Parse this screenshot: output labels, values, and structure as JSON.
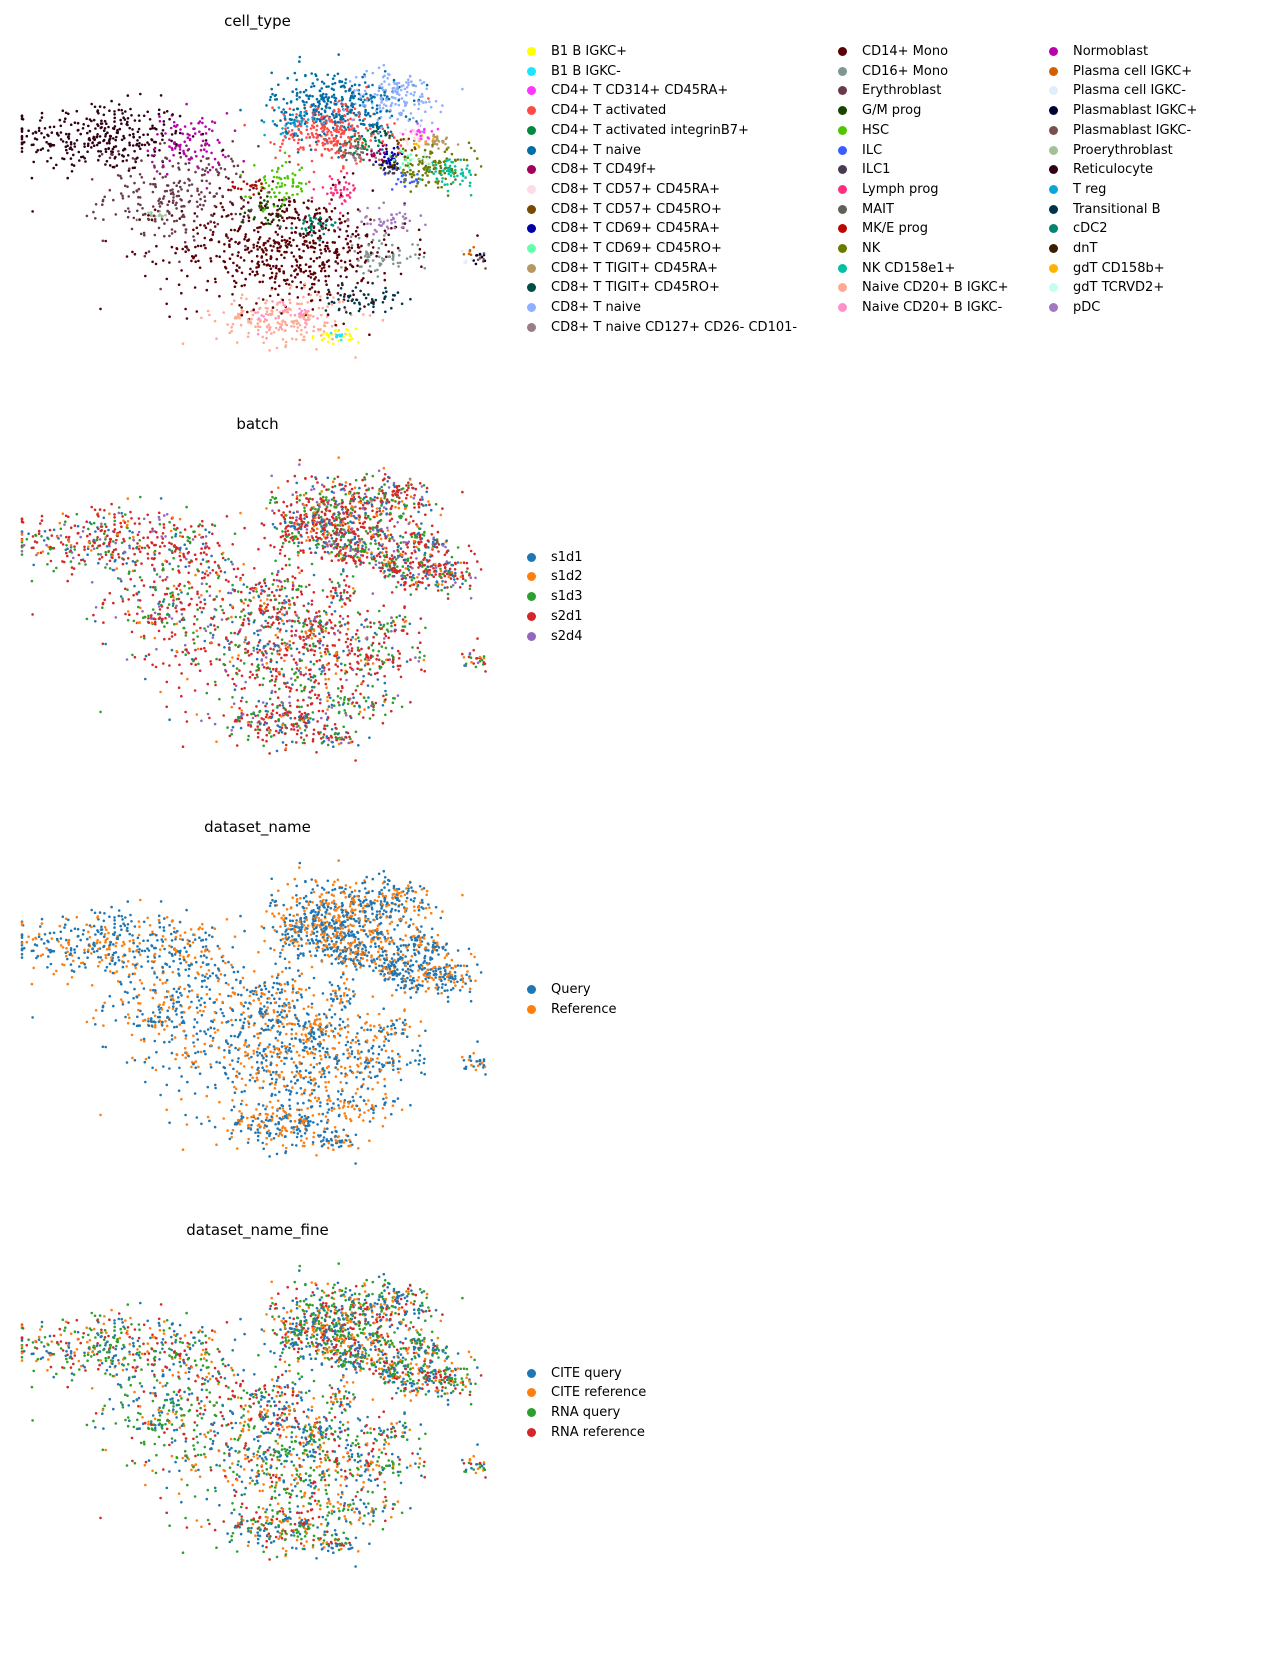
{
  "chart_data": {
    "type": "scatter",
    "xlabel": "",
    "ylabel": "",
    "axes": "off",
    "grid": false,
    "umap_range": {
      "x": [
        0,
        19
      ],
      "y": [
        -1.5,
        12
      ]
    },
    "clusters": [
      [
        "Reticulocyte",
        3.1,
        8.0,
        1.8,
        0.8,
        320
      ],
      [
        "Normoblast",
        6.7,
        7.7,
        0.8,
        0.7,
        90
      ],
      [
        "Erythroblast",
        6.3,
        5.4,
        1.5,
        1.1,
        260
      ],
      [
        "Proerythroblast",
        5.2,
        4.4,
        0.3,
        0.15,
        15
      ],
      [
        "CD14+ Mono",
        10.8,
        3.0,
        2.4,
        1.3,
        620
      ],
      [
        "CD16+ Mono",
        14.5,
        2.6,
        0.8,
        0.4,
        60
      ],
      [
        "Naive CD20+ B IGKC+",
        10.6,
        -0.2,
        1.4,
        0.6,
        200
      ],
      [
        "Naive CD20+ B IGKC-",
        10.8,
        0.0,
        0.8,
        0.4,
        40
      ],
      [
        "B1 B IGKC+",
        12.7,
        -1.0,
        0.5,
        0.2,
        30
      ],
      [
        "B1 B IGKC-",
        12.8,
        -0.9,
        0.2,
        0.1,
        10
      ],
      [
        "Transitional B",
        13.7,
        0.7,
        0.8,
        0.3,
        60
      ],
      [
        "CD4+ T naive",
        12.7,
        9.4,
        1.3,
        0.8,
        350
      ],
      [
        "CD8+ T naive",
        15.1,
        9.8,
        1.0,
        0.6,
        150
      ],
      [
        "CD4+ T activated",
        12.5,
        8.2,
        1.1,
        0.7,
        250
      ],
      [
        "T reg",
        11.0,
        8.6,
        0.4,
        0.3,
        40
      ],
      [
        "CD4+ T activated integrinB7+",
        13.8,
        7.7,
        0.4,
        0.3,
        30
      ],
      [
        "CD8+ T CD49f+",
        14.4,
        7.3,
        0.3,
        0.2,
        15
      ],
      [
        "CD4+ T CD314+ CD45RA+",
        16.2,
        8.2,
        0.3,
        0.2,
        20
      ],
      [
        "CD8+ T CD57+ CD45RA+",
        15.8,
        8.0,
        0.3,
        0.25,
        20
      ],
      [
        "CD8+ T CD57+ CD45RO+",
        15.4,
        7.6,
        0.25,
        0.2,
        15
      ],
      [
        "CD8+ T CD69+ CD45RA+",
        15.0,
        7.1,
        0.3,
        0.25,
        30
      ],
      [
        "CD8+ T CD69+ CD45RO+",
        15.6,
        7.0,
        0.25,
        0.2,
        15
      ],
      [
        "CD8+ T TIGIT+ CD45RA+",
        16.8,
        7.8,
        0.4,
        0.25,
        25
      ],
      [
        "CD8+ T TIGIT+ CD45RO+",
        14.4,
        8.2,
        0.3,
        0.25,
        20
      ],
      [
        "CD8+ T naive CD127+ CD26- CD101-",
        13.6,
        7.2,
        0.3,
        0.2,
        15
      ],
      [
        "gdT CD158b+",
        16.2,
        7.8,
        0.2,
        0.2,
        10
      ],
      [
        "gdT TCRVD2+",
        16.4,
        7.0,
        0.25,
        0.2,
        10
      ],
      [
        "dnT",
        14.9,
        6.8,
        0.25,
        0.15,
        10
      ],
      [
        "NK",
        16.5,
        6.6,
        0.9,
        0.4,
        120
      ],
      [
        "NK CD158e1+",
        17.4,
        6.4,
        0.5,
        0.3,
        60
      ],
      [
        "ILC",
        15.6,
        6.0,
        0.3,
        0.2,
        20
      ],
      [
        "ILC1",
        14.8,
        6.6,
        0.25,
        0.2,
        15
      ],
      [
        "MAIT",
        13.2,
        7.3,
        0.4,
        0.2,
        25
      ],
      [
        "HSC",
        10.4,
        5.8,
        0.6,
        0.5,
        70
      ],
      [
        "MK/E prog",
        9.2,
        5.8,
        0.4,
        0.15,
        20
      ],
      [
        "G/M prog",
        10.0,
        4.6,
        0.6,
        0.3,
        40
      ],
      [
        "Lymph prog",
        12.8,
        5.6,
        0.4,
        0.3,
        40
      ],
      [
        "cDC2",
        11.8,
        4.0,
        0.6,
        0.25,
        40
      ],
      [
        "pDC",
        14.8,
        4.2,
        0.6,
        0.3,
        50
      ],
      [
        "Plasma cell IGKC+",
        18.2,
        2.8,
        0.12,
        0.12,
        6
      ],
      [
        "Plasma cell IGKC-",
        18.0,
        2.5,
        0.15,
        0.12,
        5
      ],
      [
        "Plasmablast IGKC+",
        18.5,
        2.6,
        0.15,
        0.15,
        8
      ],
      [
        "Plasmablast IGKC-",
        18.7,
        2.5,
        0.15,
        0.15,
        8
      ]
    ],
    "panels": [
      {
        "title": "cell_type",
        "color_by": "cluster",
        "legend_columns": 3,
        "legend": [
          {
            "label": "B1 B IGKC+",
            "color": "#ffff00"
          },
          {
            "label": "B1 B IGKC-",
            "color": "#1ce6ff"
          },
          {
            "label": "CD4+ T CD314+ CD45RA+",
            "color": "#ff34ff"
          },
          {
            "label": "CD4+ T activated",
            "color": "#ff4a46"
          },
          {
            "label": "CD4+ T activated integrinB7+",
            "color": "#008941"
          },
          {
            "label": "CD4+ T naive",
            "color": "#006fa6"
          },
          {
            "label": "CD8+ T CD49f+",
            "color": "#a30059"
          },
          {
            "label": "CD8+ T CD57+ CD45RA+",
            "color": "#ffdbe5"
          },
          {
            "label": "CD8+ T CD57+ CD45RO+",
            "color": "#7a4900"
          },
          {
            "label": "CD8+ T CD69+ CD45RA+",
            "color": "#0000a6"
          },
          {
            "label": "CD8+ T CD69+ CD45RO+",
            "color": "#63ffac"
          },
          {
            "label": "CD8+ T TIGIT+ CD45RA+",
            "color": "#b79762"
          },
          {
            "label": "CD8+ T TIGIT+ CD45RO+",
            "color": "#004d43"
          },
          {
            "label": "CD8+ T naive",
            "color": "#8fb0ff"
          },
          {
            "label": "CD8+ T naive CD127+ CD26- CD101-",
            "color": "#997d87"
          },
          {
            "label": "CD14+ Mono",
            "color": "#5a0007"
          },
          {
            "label": "CD16+ Mono",
            "color": "#809693"
          },
          {
            "label": "Erythroblast",
            "color": "#6a3a4c"
          },
          {
            "label": "G/M prog",
            "color": "#1b4400"
          },
          {
            "label": "HSC",
            "color": "#4fc601"
          },
          {
            "label": "ILC",
            "color": "#3b5dff"
          },
          {
            "label": "ILC1",
            "color": "#4a3b53"
          },
          {
            "label": "Lymph prog",
            "color": "#ff2f80"
          },
          {
            "label": "MAIT",
            "color": "#61615a"
          },
          {
            "label": "MK/E prog",
            "color": "#ba0900"
          },
          {
            "label": "NK",
            "color": "#6b7900"
          },
          {
            "label": "NK CD158e1+",
            "color": "#00c2a0"
          },
          {
            "label": "Naive CD20+ B IGKC+",
            "color": "#ffaa92"
          },
          {
            "label": "Naive CD20+ B IGKC-",
            "color": "#ff90c9"
          },
          {
            "label": "Normoblast",
            "color": "#b903aa"
          },
          {
            "label": "Plasma cell IGKC+",
            "color": "#d16100"
          },
          {
            "label": "Plasma cell IGKC-",
            "color": "#ddefff"
          },
          {
            "label": "Plasmablast IGKC+",
            "color": "#000035"
          },
          {
            "label": "Plasmablast IGKC-",
            "color": "#7b4f4b"
          },
          {
            "label": "Proerythroblast",
            "color": "#a1c299"
          },
          {
            "label": "Reticulocyte",
            "color": "#300018"
          },
          {
            "label": "T reg",
            "color": "#0aa6d8"
          },
          {
            "label": "Transitional B",
            "color": "#013349"
          },
          {
            "label": "cDC2",
            "color": "#00846f"
          },
          {
            "label": "dnT",
            "color": "#372101"
          },
          {
            "label": "gdT CD158b+",
            "color": "#ffb500"
          },
          {
            "label": "gdT TCRVD2+",
            "color": "#c2ffed"
          },
          {
            "label": "pDC",
            "color": "#a079bf"
          }
        ]
      },
      {
        "title": "batch",
        "color_by": "random",
        "weights": [
          0.15,
          0.1,
          0.2,
          0.45,
          0.1
        ],
        "legend": [
          {
            "label": "s1d1",
            "color": "#1f77b4"
          },
          {
            "label": "s1d2",
            "color": "#ff7f0e"
          },
          {
            "label": "s1d3",
            "color": "#2ca02c"
          },
          {
            "label": "s2d1",
            "color": "#d62728"
          },
          {
            "label": "s2d4",
            "color": "#9467bd"
          }
        ]
      },
      {
        "title": "dataset_name",
        "color_by": "random",
        "weights": [
          0.6,
          0.4
        ],
        "legend": [
          {
            "label": "Query",
            "color": "#1f77b4"
          },
          {
            "label": "Reference",
            "color": "#ff7f0e"
          }
        ]
      },
      {
        "title": "dataset_name_fine",
        "color_by": "random",
        "weights": [
          0.3,
          0.2,
          0.3,
          0.2
        ],
        "legend": [
          {
            "label": "CITE query",
            "color": "#1f77b4"
          },
          {
            "label": "CITE reference",
            "color": "#ff7f0e"
          },
          {
            "label": "RNA query",
            "color": "#2ca02c"
          },
          {
            "label": "RNA reference",
            "color": "#d62728"
          }
        ]
      }
    ]
  }
}
